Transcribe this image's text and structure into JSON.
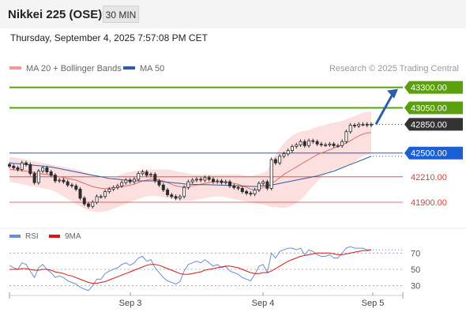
{
  "header": {
    "title": "Nikkei 225 (OSE)",
    "interval": "30 MIN",
    "datetime": "Thursday, September 4, 2025 7:57:08 PM CET"
  },
  "colors": {
    "price_level": "#5aa00e",
    "current_price": "#333333",
    "support_blue": "#1a5fd6",
    "support_red": "#d84040",
    "ma20": "#e26a6a",
    "bollinger_fill": "#fbd9d9",
    "ma50": "#2f5c9e",
    "candle": "#2c2c2c",
    "rsi": "#6a8fd8",
    "rsi_ma": "#d81818",
    "arrow": "#2a5fa8"
  },
  "chart_data": [
    {
      "type": "candlestick",
      "legend": [
        {
          "name": "MA 20 + Bollinger Bands",
          "color": "#f29a9a"
        },
        {
          "name": "MA 50",
          "color": "#2f5c9e"
        }
      ],
      "credit": "Research © 2025 Trading Central",
      "x_ticks": [
        "Sep 3",
        "Sep 4",
        "Sep 5"
      ],
      "ylim": [
        41650,
        43450
      ],
      "levels": [
        {
          "value": 43300,
          "label": "43300.00",
          "style": "green-tag"
        },
        {
          "value": 43050,
          "label": "43050.00",
          "style": "green-tag"
        },
        {
          "value": 42850,
          "label": "42850.00",
          "style": "current-tag"
        },
        {
          "value": 42500,
          "label": "42500.00",
          "style": "blue-tag"
        },
        {
          "value": 42210,
          "label": "42210.00",
          "style": "red-text"
        },
        {
          "value": 41900,
          "label": "41900.00",
          "style": "red-text"
        }
      ],
      "projection": {
        "from": 42850,
        "to": 43300
      },
      "close": [
        42340,
        42320,
        42300,
        42380,
        42360,
        42250,
        42140,
        42280,
        42320,
        42270,
        42230,
        42160,
        42170,
        42150,
        42110,
        42100,
        42060,
        41950,
        41880,
        41850,
        41900,
        41970,
        41970,
        42030,
        42060,
        42080,
        42100,
        42140,
        42170,
        42150,
        42180,
        42250,
        42270,
        42230,
        42240,
        42160,
        42110,
        42050,
        41990,
        41970,
        41950,
        41970,
        42080,
        42150,
        42170,
        42180,
        42170,
        42200,
        42180,
        42150,
        42160,
        42140,
        42150,
        42100,
        42080,
        42070,
        42030,
        42010,
        42000,
        42050,
        42130,
        42150,
        42070,
        42420,
        42380,
        42460,
        42490,
        42530,
        42580,
        42600,
        42640,
        42590,
        42650,
        42640,
        42610,
        42600,
        42600,
        42610,
        42590,
        42590,
        42640,
        42760,
        42840,
        42830,
        42850,
        42850,
        42840,
        42850
      ],
      "ma20": [
        42300,
        42295,
        42290,
        42285,
        42280,
        42270,
        42260,
        42250,
        42245,
        42240,
        42230,
        42220,
        42210,
        42200,
        42190,
        42180,
        42170,
        42150,
        42130,
        42110,
        42090,
        42080,
        42070,
        42065,
        42070,
        42075,
        42080,
        42090,
        42100,
        42110,
        42120,
        42140,
        42160,
        42170,
        42180,
        42180,
        42170,
        42160,
        42140,
        42120,
        42100,
        42090,
        42090,
        42095,
        42100,
        42110,
        42120,
        42130,
        42140,
        42150,
        42150,
        42150,
        42145,
        42140,
        42130,
        42120,
        42100,
        42080,
        42060,
        42050,
        42060,
        42080,
        42090,
        42130,
        42160,
        42200,
        42240,
        42270,
        42300,
        42330,
        42360,
        42390,
        42420,
        42450,
        42480,
        42500,
        42520,
        42540,
        42560,
        42580,
        42600,
        42620,
        42650,
        42680,
        42710,
        42730,
        42745,
        42750
      ],
      "bb_upper": [
        42450,
        42450,
        42440,
        42430,
        42420,
        42410,
        42400,
        42390,
        42380,
        42370,
        42360,
        42350,
        42340,
        42330,
        42320,
        42310,
        42300,
        42290,
        42270,
        42250,
        42230,
        42210,
        42200,
        42190,
        42190,
        42200,
        42220,
        42240,
        42260,
        42270,
        42280,
        42290,
        42300,
        42300,
        42300,
        42300,
        42300,
        42300,
        42300,
        42290,
        42280,
        42270,
        42260,
        42250,
        42240,
        42240,
        42240,
        42240,
        42240,
        42240,
        42240,
        42240,
        42240,
        42240,
        42240,
        42240,
        42230,
        42220,
        42220,
        42230,
        42240,
        42260,
        42280,
        42400,
        42480,
        42560,
        42620,
        42670,
        42710,
        42740,
        42760,
        42770,
        42780,
        42800,
        42820,
        42830,
        42840,
        42860,
        42870,
        42880,
        42890,
        42910,
        42930,
        42950,
        42970,
        42990,
        43000,
        43010
      ],
      "bb_lower": [
        42150,
        42140,
        42130,
        42120,
        42110,
        42100,
        42090,
        42080,
        42070,
        42060,
        42050,
        42030,
        42000,
        41970,
        41940,
        41910,
        41880,
        41850,
        41820,
        41800,
        41790,
        41780,
        41780,
        41790,
        41800,
        41820,
        41840,
        41860,
        41880,
        41900,
        41920,
        41940,
        41960,
        41970,
        41980,
        41980,
        41970,
        41960,
        41950,
        41940,
        41930,
        41920,
        41920,
        41920,
        41920,
        41930,
        41940,
        41950,
        41960,
        41970,
        41970,
        41970,
        41960,
        41950,
        41940,
        41930,
        41920,
        41910,
        41900,
        41890,
        41880,
        41870,
        41860,
        41840,
        41840,
        41830,
        41830,
        41840,
        41860,
        41890,
        41930,
        41980,
        42040,
        42100,
        42150,
        42200,
        42240,
        42270,
        42300,
        42320,
        42330,
        42340,
        42360,
        42390,
        42430,
        42460,
        42480,
        42490
      ],
      "ma50": [
        42380,
        42375,
        42370,
        42365,
        42360,
        42355,
        42350,
        42345,
        42340,
        42335,
        42330,
        42320,
        42310,
        42300,
        42290,
        42280,
        42270,
        42260,
        42250,
        42240,
        42230,
        42220,
        42210,
        42200,
        42190,
        42185,
        42180,
        42175,
        42170,
        42165,
        42160,
        42160,
        42160,
        42160,
        42160,
        42160,
        42155,
        42150,
        42145,
        42140,
        42135,
        42130,
        42125,
        42120,
        42118,
        42116,
        42115,
        42114,
        42113,
        42112,
        42110,
        42108,
        42106,
        42104,
        42102,
        42100,
        42098,
        42096,
        42094,
        42092,
        42095,
        42100,
        42105,
        42110,
        42120,
        42130,
        42140,
        42150,
        42160,
        42170,
        42180,
        42190,
        42200,
        42210,
        42220,
        42235,
        42250,
        42265,
        42280,
        42300,
        42320,
        42340,
        42360,
        42380,
        42400,
        42420,
        42440,
        42460
      ]
    },
    {
      "type": "line",
      "legend": [
        {
          "name": "RSI",
          "color": "#6a8fd8"
        },
        {
          "name": "9MA",
          "color": "#d81818"
        }
      ],
      "y_ticks": [
        70,
        50,
        30
      ],
      "ylim": [
        20,
        80
      ],
      "rsi": [
        55,
        52,
        50,
        58,
        56,
        48,
        40,
        52,
        56,
        50,
        46,
        40,
        42,
        40,
        36,
        34,
        32,
        28,
        26,
        24,
        30,
        38,
        38,
        45,
        48,
        50,
        52,
        56,
        58,
        55,
        58,
        64,
        66,
        60,
        62,
        52,
        46,
        40,
        36,
        34,
        32,
        35,
        48,
        56,
        58,
        60,
        58,
        62,
        58,
        54,
        56,
        52,
        54,
        48,
        46,
        44,
        40,
        38,
        36,
        44,
        54,
        56,
        46,
        70,
        64,
        72,
        74,
        76,
        76,
        74,
        76,
        68,
        74,
        72,
        68,
        66,
        66,
        68,
        64,
        64,
        70,
        76,
        78,
        76,
        76,
        76,
        74,
        74
      ],
      "rsi_ma": [
        50,
        50,
        50,
        51,
        51,
        50,
        49,
        49,
        50,
        50,
        49,
        47,
        46,
        45,
        43,
        42,
        40,
        38,
        36,
        34,
        33,
        33,
        34,
        35,
        37,
        39,
        41,
        43,
        45,
        47,
        49,
        51,
        53,
        55,
        56,
        56,
        55,
        53,
        51,
        49,
        47,
        45,
        44,
        44,
        45,
        46,
        47,
        49,
        50,
        51,
        52,
        53,
        54,
        54,
        53,
        52,
        50,
        48,
        46,
        45,
        45,
        46,
        46,
        48,
        51,
        54,
        57,
        60,
        62,
        64,
        66,
        67,
        68,
        69,
        70,
        70,
        70,
        70,
        69,
        68,
        68,
        69,
        70,
        71,
        72,
        73,
        73,
        74
      ]
    }
  ]
}
